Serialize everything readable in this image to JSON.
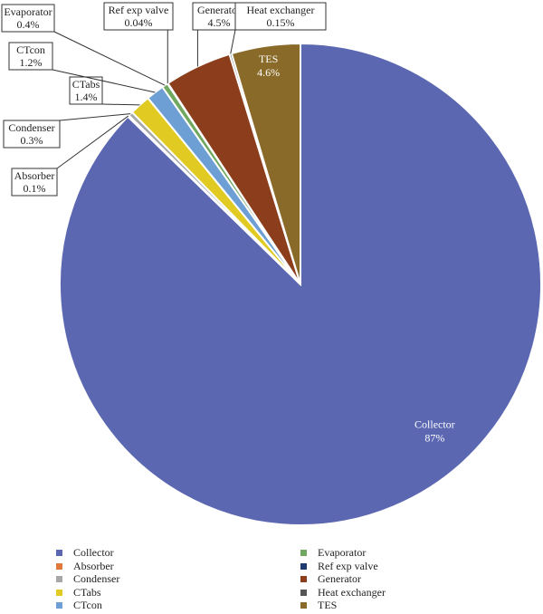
{
  "chart_data": {
    "type": "pie",
    "title": "",
    "start_angle_deg": 0,
    "direction": "clockwise",
    "slices": [
      {
        "name": "Collector",
        "value": 87,
        "display": "87%",
        "color": "#5b67b1",
        "label_style": "inside"
      },
      {
        "name": "Absorber",
        "value": 0.1,
        "display": "0.1%",
        "color": "#e07a3c",
        "label_style": "callout"
      },
      {
        "name": "Condenser",
        "value": 0.3,
        "display": "0.3%",
        "color": "#a7a7a7",
        "label_style": "callout"
      },
      {
        "name": "CTabs",
        "value": 1.4,
        "display": "1.4%",
        "color": "#e1cb22",
        "label_style": "callout"
      },
      {
        "name": "CTcon",
        "value": 1.2,
        "display": "1.2%",
        "color": "#6d9fd5",
        "label_style": "callout"
      },
      {
        "name": "Evaporator",
        "value": 0.4,
        "display": "0.4%",
        "color": "#71a860",
        "label_style": "callout"
      },
      {
        "name": "Ref exp valve",
        "value": 0.04,
        "display": "0.04%",
        "color": "#1f3a6e",
        "label_style": "callout"
      },
      {
        "name": "Generator",
        "value": 4.5,
        "display": "4.5%",
        "color": "#8c3e1c",
        "label_style": "callout"
      },
      {
        "name": "Heat exchanger",
        "value": 0.15,
        "display": "0.15%",
        "color": "#555555",
        "label_style": "callout"
      },
      {
        "name": "TES",
        "value": 4.6,
        "display": "4.6%",
        "color": "#8a6a28",
        "label_style": "inside"
      }
    ],
    "legend": {
      "placement": "bottom",
      "columns": [
        [
          "Collector",
          "Absorber",
          "Condenser",
          "CTabs",
          "CTcon"
        ],
        [
          "Evaporator",
          "Ref exp valve",
          "Generator",
          "Heat exchanger",
          "TES"
        ]
      ]
    }
  }
}
